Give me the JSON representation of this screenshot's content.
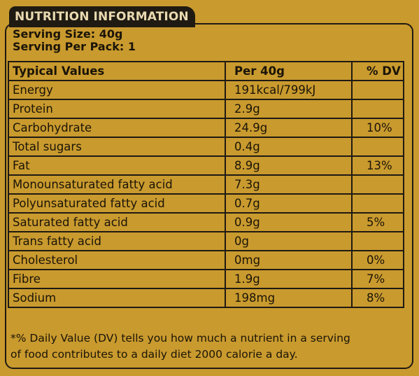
{
  "header": {
    "title": "NUTRITION INFORMATION"
  },
  "serving": {
    "size": "Serving Size: 40g",
    "per_pack": "Serving Per Pack: 1"
  },
  "table": {
    "headers": [
      "Typical Values",
      "Per 40g",
      "% DV"
    ],
    "rows": [
      {
        "name": "Energy",
        "amount": "191kcal/799kJ",
        "dv": ""
      },
      {
        "name": "Protein",
        "amount": "2.9g",
        "dv": ""
      },
      {
        "name": "Carbohydrate",
        "amount": "24.9g",
        "dv": "10%"
      },
      {
        "name": "Total sugars",
        "amount": "0.4g",
        "dv": ""
      },
      {
        "name": "Fat",
        "amount": "8.9g",
        "dv": "13%"
      },
      {
        "name": "Monounsaturated fatty acid",
        "amount": "7.3g",
        "dv": ""
      },
      {
        "name": "Polyunsaturated fatty acid",
        "amount": "0.7g",
        "dv": ""
      },
      {
        "name": "Saturated fatty acid",
        "amount": "0.9g",
        "dv": "5%"
      },
      {
        "name": "Trans fatty acid",
        "amount": "0g",
        "dv": ""
      },
      {
        "name": "Cholesterol",
        "amount": "0mg",
        "dv": "0%"
      },
      {
        "name": "Fibre",
        "amount": "1.9g",
        "dv": "7%"
      },
      {
        "name": "Sodium",
        "amount": "198mg",
        "dv": "8%"
      }
    ]
  },
  "footnote": {
    "line1": "*% Daily Value (DV) tells you how much a nutrient in a serving",
    "line2": "of food contributes to a daily diet 2000 calorie a day."
  },
  "colors": {
    "background": "#C99A2E",
    "ink": "#1f1a12",
    "tab_text": "#e9d9b0"
  }
}
